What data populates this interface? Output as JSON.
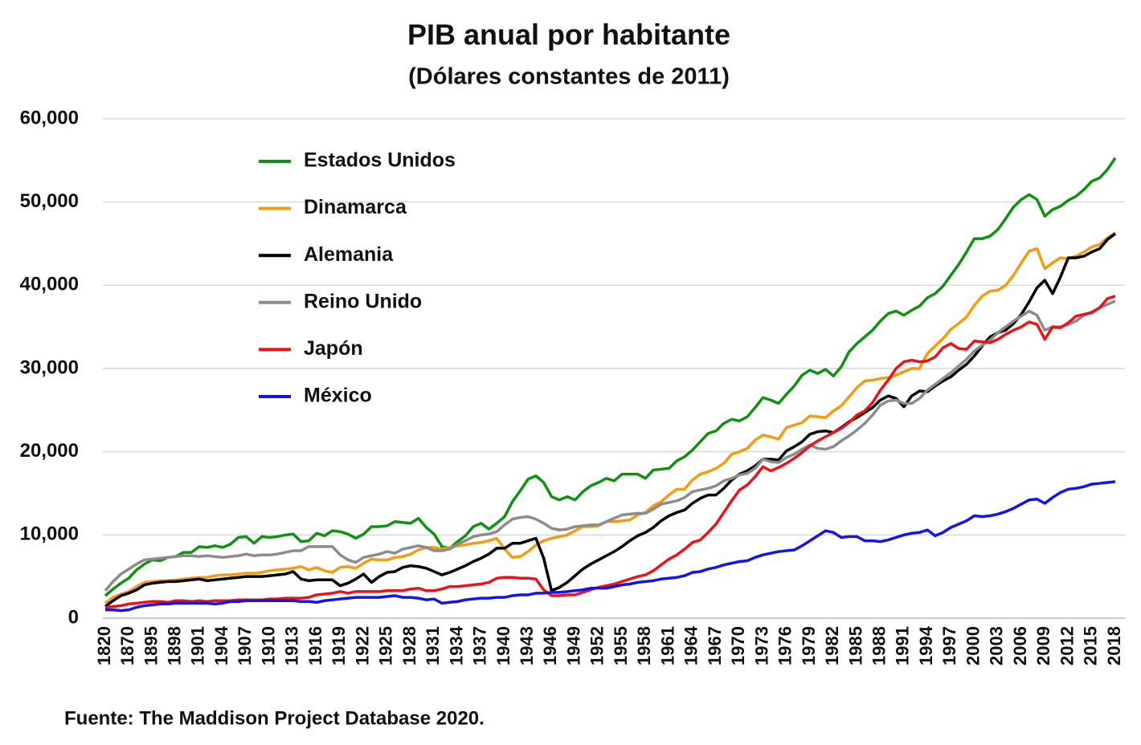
{
  "chart_data": {
    "type": "line",
    "title": "PIB anual por habitante",
    "subtitle": "(Dólares constantes de 2011)",
    "source": "Fuente: The Maddison Project Database 2020.",
    "ylim": [
      0,
      60000
    ],
    "yticks": [
      0,
      {
        "value": 10000,
        "label": "10,000"
      },
      {
        "value": 20000,
        "label": "20,000"
      },
      {
        "value": 30000,
        "label": "30,000"
      },
      {
        "value": 40000,
        "label": "40,000"
      },
      {
        "value": 50000,
        "label": "50,000"
      },
      {
        "value": 60000,
        "label": "60,000"
      }
    ],
    "grid": true,
    "legend": "top-left",
    "categories": [
      "1820",
      null,
      null,
      "1870",
      null,
      null,
      "1895",
      null,
      null,
      "1898",
      null,
      null,
      "1901",
      null,
      null,
      "1904",
      null,
      null,
      "1907",
      null,
      null,
      "1910",
      null,
      null,
      "1913",
      null,
      null,
      "1916",
      null,
      null,
      "1919",
      null,
      null,
      "1922",
      null,
      null,
      "1925",
      null,
      null,
      "1928",
      null,
      null,
      "1931",
      null,
      null,
      "1934",
      null,
      null,
      "1937",
      null,
      null,
      "1940",
      null,
      null,
      "1943",
      null,
      null,
      "1946",
      null,
      null,
      "1949",
      null,
      null,
      "1952",
      null,
      null,
      "1955",
      null,
      null,
      "1958",
      null,
      null,
      "1961",
      null,
      null,
      "1964",
      null,
      null,
      "1967",
      null,
      null,
      "1970",
      null,
      null,
      "1973",
      null,
      null,
      "1976",
      null,
      null,
      "1979",
      null,
      null,
      "1982",
      null,
      null,
      "1985",
      null,
      null,
      "1988",
      null,
      null,
      "1991",
      null,
      null,
      "1994",
      null,
      null,
      "1997",
      null,
      null,
      "2000",
      null,
      null,
      "2003",
      null,
      null,
      "2006",
      null,
      null,
      "2009",
      null,
      null,
      "2012",
      null,
      null,
      "2015",
      null,
      null,
      "2018"
    ],
    "series": [
      {
        "name": "Estados Unidos",
        "color": "#119111",
        "values": [
          2700,
          3500,
          4200,
          4800,
          5800,
          6500,
          7000,
          6900,
          7300,
          7400,
          7900,
          7900,
          8600,
          8500,
          8700,
          8500,
          8900,
          9700,
          9800,
          9000,
          9800,
          9700,
          9800,
          10000,
          10100,
          9200,
          9300,
          10200,
          9900,
          10500,
          10400,
          10100,
          9600,
          10100,
          11000,
          11000,
          11100,
          11600,
          11500,
          11400,
          12000,
          10900,
          10100,
          8600,
          8400,
          9200,
          9900,
          11000,
          11400,
          10700,
          11400,
          12200,
          14000,
          15300,
          16700,
          17100,
          16300,
          14600,
          14200,
          14600,
          14200,
          15200,
          15900,
          16300,
          16800,
          16500,
          17300,
          17300,
          17300,
          16800,
          17800,
          17900,
          18000,
          18900,
          19400,
          20200,
          21200,
          22200,
          22500,
          23400,
          23900,
          23700,
          24200,
          25300,
          26500,
          26200,
          25800,
          26900,
          27900,
          29200,
          29800,
          29400,
          29900,
          29100,
          30200,
          32000,
          33000,
          33800,
          34600,
          35700,
          36600,
          36900,
          36400,
          37000,
          37500,
          38500,
          39000,
          39900,
          41200,
          42500,
          44000,
          45600,
          45600,
          45900,
          46700,
          48000,
          49400,
          50300,
          50900,
          50300,
          48300,
          49100,
          49500,
          50200,
          50700,
          51500,
          52500,
          52900,
          53900,
          55300
        ]
      },
      {
        "name": "Dinamarca",
        "color": "#f39c12",
        "values": [
          1800,
          2500,
          2900,
          3200,
          3800,
          4300,
          4400,
          4500,
          4500,
          4600,
          4700,
          4800,
          4900,
          4900,
          5100,
          5200,
          5200,
          5300,
          5400,
          5400,
          5500,
          5700,
          5800,
          5900,
          6000,
          6200,
          5800,
          6100,
          5700,
          5500,
          6100,
          6200,
          6000,
          6600,
          7100,
          7000,
          7000,
          7300,
          7400,
          7700,
          8200,
          8500,
          8500,
          8300,
          8500,
          8700,
          8800,
          9000,
          9100,
          9300,
          9600,
          8300,
          7300,
          7400,
          8000,
          8800,
          9300,
          9600,
          9800,
          10000,
          10500,
          11000,
          11000,
          11100,
          11600,
          11600,
          11700,
          11800,
          12400,
          12700,
          13500,
          14000,
          14800,
          15500,
          15500,
          16600,
          17300,
          17600,
          18000,
          18600,
          19700,
          20000,
          20400,
          21400,
          22000,
          21800,
          21500,
          22900,
          23200,
          23500,
          24300,
          24200,
          24100,
          24900,
          25500,
          26600,
          27700,
          28500,
          28600,
          28800,
          28900,
          29200,
          29600,
          30000,
          30000,
          31800,
          32700,
          33600,
          34700,
          35400,
          36200,
          37600,
          38700,
          39300,
          39400,
          40000,
          41200,
          42700,
          44100,
          44400,
          42000,
          42700,
          43300,
          43200,
          43500,
          44000,
          44600,
          44900,
          45700,
          46300
        ]
      },
      {
        "name": "Alemania",
        "color": "#000000",
        "values": [
          1400,
          2100,
          2700,
          3000,
          3400,
          4000,
          4200,
          4300,
          4400,
          4400,
          4500,
          4600,
          4700,
          4500,
          4600,
          4700,
          4800,
          4900,
          5000,
          5000,
          5000,
          5100,
          5200,
          5300,
          5600,
          4700,
          4500,
          4600,
          4600,
          4600,
          3900,
          4200,
          4700,
          5300,
          4300,
          5000,
          5500,
          5600,
          6100,
          6300,
          6200,
          6000,
          5600,
          5200,
          5500,
          5900,
          6300,
          6800,
          7200,
          7700,
          8400,
          8400,
          9000,
          9000,
          9300,
          9600,
          7200,
          3300,
          3700,
          4300,
          5100,
          5900,
          6500,
          7000,
          7500,
          8000,
          8600,
          9300,
          9900,
          10300,
          10900,
          11700,
          12300,
          12700,
          13000,
          13800,
          14400,
          14800,
          14800,
          15600,
          16600,
          17300,
          17700,
          18300,
          19100,
          19100,
          19000,
          20100,
          20600,
          21200,
          22100,
          22400,
          22500,
          22300,
          22900,
          23600,
          24100,
          24700,
          25300,
          26200,
          26700,
          26400,
          25400,
          26700,
          27300,
          27200,
          27900,
          28500,
          29000,
          29800,
          30500,
          31500,
          32700,
          33800,
          34300,
          34600,
          35400,
          36500,
          38000,
          39700,
          40600,
          39000,
          41000,
          43300,
          43300,
          43500,
          44000,
          44400,
          45500,
          46200
        ]
      },
      {
        "name": "Reino Unido",
        "color": "#8c8c8c",
        "values": [
          3300,
          4400,
          5300,
          5900,
          6500,
          7000,
          7100,
          7200,
          7300,
          7400,
          7500,
          7500,
          7400,
          7500,
          7400,
          7300,
          7400,
          7500,
          7700,
          7500,
          7600,
          7600,
          7700,
          7900,
          8100,
          8100,
          8600,
          8600,
          8600,
          8600,
          7600,
          7000,
          6700,
          7300,
          7500,
          7700,
          8000,
          7800,
          8300,
          8500,
          8700,
          8500,
          8100,
          8100,
          8300,
          8900,
          9300,
          9800,
          10000,
          10100,
          10400,
          11200,
          11900,
          12100,
          12200,
          11900,
          11400,
          10800,
          10600,
          10700,
          11000,
          11100,
          11200,
          11200,
          11600,
          12000,
          12400,
          12500,
          12600,
          12600,
          13100,
          13700,
          13900,
          14100,
          14500,
          15200,
          15400,
          15600,
          15900,
          16500,
          16800,
          17200,
          17400,
          18000,
          19100,
          18800,
          18700,
          19300,
          19700,
          20300,
          20800,
          20400,
          20300,
          20600,
          21300,
          21900,
          22600,
          23400,
          24400,
          25600,
          26100,
          26200,
          25800,
          25800,
          26400,
          27400,
          28100,
          28800,
          29500,
          30300,
          31100,
          32100,
          32800,
          33400,
          34300,
          35000,
          35700,
          36300,
          36900,
          36400,
          34600,
          35000,
          35000,
          35300,
          35700,
          36400,
          36800,
          37300,
          37700,
          38100
        ]
      },
      {
        "name": "Japón",
        "color": "#e8141a",
        "values": [
          1300,
          1400,
          1500,
          1700,
          1800,
          1900,
          2000,
          2000,
          1900,
          2100,
          2100,
          2000,
          2100,
          2000,
          2100,
          2100,
          2100,
          2200,
          2200,
          2200,
          2200,
          2300,
          2300,
          2400,
          2400,
          2400,
          2500,
          2800,
          2900,
          3000,
          3200,
          3000,
          3200,
          3200,
          3200,
          3200,
          3300,
          3300,
          3300,
          3500,
          3600,
          3300,
          3300,
          3500,
          3800,
          3800,
          3900,
          4000,
          4100,
          4300,
          4800,
          4900,
          4900,
          4800,
          4800,
          4700,
          3400,
          2700,
          2700,
          2800,
          2800,
          3100,
          3400,
          3700,
          3900,
          4100,
          4400,
          4700,
          5000,
          5200,
          5700,
          6400,
          7100,
          7600,
          8300,
          9100,
          9400,
          10300,
          11300,
          12700,
          14100,
          15400,
          16000,
          17000,
          18200,
          17700,
          18100,
          18600,
          19200,
          19900,
          20700,
          21300,
          21800,
          22300,
          22800,
          23500,
          24400,
          24900,
          25900,
          27400,
          28600,
          30000,
          30800,
          31000,
          30800,
          30900,
          31400,
          32500,
          33000,
          32400,
          32300,
          33300,
          33200,
          33100,
          33500,
          34100,
          34600,
          35000,
          35600,
          35300,
          33500,
          35000,
          34900,
          35500,
          36300,
          36500,
          36700,
          37300,
          38400,
          38700
        ]
      },
      {
        "name": "México",
        "color": "#1414e6",
        "values": [
          1000,
          1000,
          900,
          1000,
          1300,
          1500,
          1600,
          1700,
          1700,
          1800,
          1800,
          1800,
          1800,
          1800,
          1700,
          1800,
          2000,
          2000,
          2100,
          2100,
          2100,
          2100,
          2100,
          2100,
          2100,
          2000,
          2000,
          1900,
          2100,
          2200,
          2300,
          2400,
          2500,
          2500,
          2500,
          2500,
          2600,
          2700,
          2500,
          2500,
          2400,
          2200,
          2300,
          1800,
          1900,
          2000,
          2200,
          2300,
          2400,
          2400,
          2500,
          2500,
          2700,
          2800,
          2800,
          3000,
          3000,
          3100,
          3100,
          3200,
          3300,
          3400,
          3600,
          3600,
          3600,
          3800,
          4000,
          4100,
          4300,
          4400,
          4500,
          4700,
          4800,
          4900,
          5100,
          5500,
          5600,
          5900,
          6100,
          6400,
          6600,
          6800,
          6900,
          7300,
          7600,
          7800,
          8000,
          8100,
          8200,
          8700,
          9300,
          9900,
          10500,
          10300,
          9700,
          9800,
          9800,
          9300,
          9300,
          9200,
          9400,
          9700,
          10000,
          10200,
          10300,
          10600,
          9900,
          10300,
          10900,
          11300,
          11700,
          12300,
          12200,
          12300,
          12500,
          12800,
          13200,
          13700,
          14200,
          14300,
          13800,
          14500,
          15100,
          15500,
          15600,
          15800,
          16100,
          16200,
          16300,
          16400
        ]
      }
    ]
  }
}
